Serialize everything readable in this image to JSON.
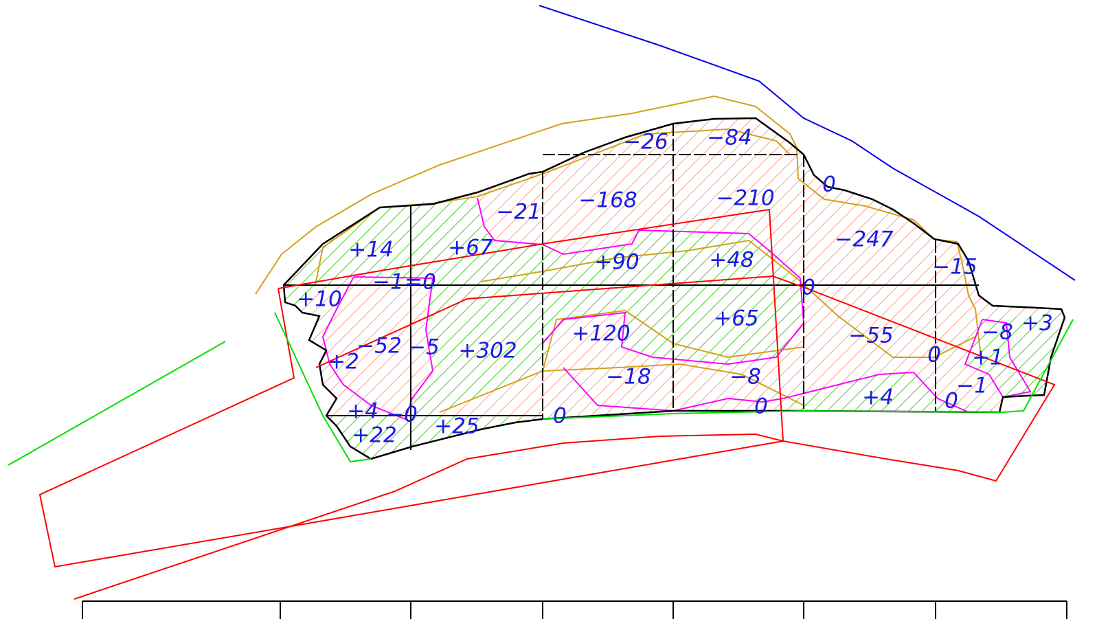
{
  "labels": [
    "−26",
    "−84",
    "0",
    "−21",
    "−168",
    "−210",
    "−247",
    "+14",
    "+67",
    "+90",
    "+48",
    "−15",
    "−1",
    "=0",
    "0",
    "+10",
    "+65",
    "+120",
    "−55",
    "−8",
    "+3",
    "−52",
    "−5",
    "+302",
    "+2",
    "0",
    "+1",
    "−18",
    "−8",
    "−1",
    "+4",
    "0",
    "+4",
    "−0",
    "+22",
    "+25",
    "0",
    "0"
  ]
}
